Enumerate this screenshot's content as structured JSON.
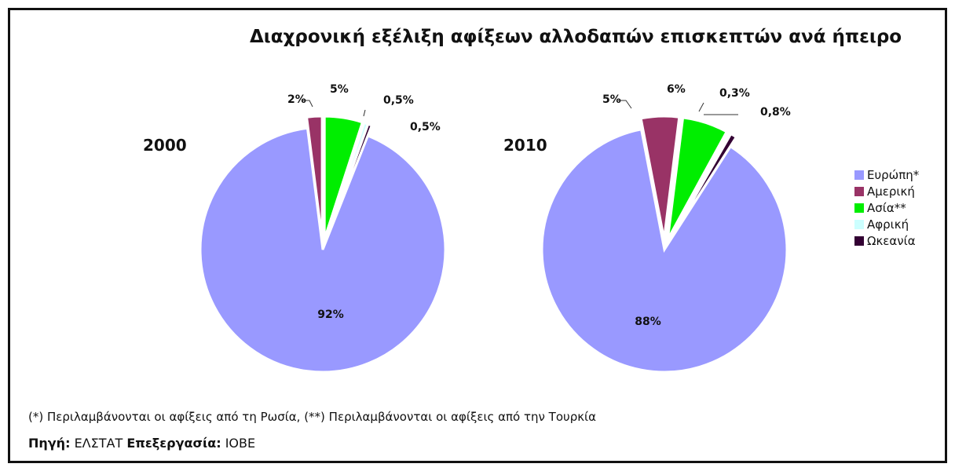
{
  "title": "Διαχρονική εξέλιξη αφίξεων αλλοδαπών επισκεπτών ανά ήπειρο",
  "footnote": "(*) Περιλαμβάνονται οι αφίξεις από τη Ρωσία, (**) Περιλαμβάνονται οι αφίξεις από την Τουρκία",
  "source": {
    "source_label": "Πηγή:",
    "source_value": "ΕΛΣΤΑΤ",
    "processing_label": "Επεξεργασία:",
    "processing_value": "ΙΟΒΕ"
  },
  "legend": [
    {
      "label": "Ευρώπη*",
      "color": "#9999ff"
    },
    {
      "label": "Αμερική",
      "color": "#993366"
    },
    {
      "label": "Ασία**",
      "color": "#00ee00"
    },
    {
      "label": "Αφρική",
      "color": "#ccffff"
    },
    {
      "label": "Ωκεανία",
      "color": "#330033"
    }
  ],
  "chart_data": [
    {
      "type": "pie",
      "title": "2000",
      "categories": [
        "Ευρώπη*",
        "Αμερική",
        "Ασία**",
        "Αφρική",
        "Ωκεανία"
      ],
      "values": [
        92,
        2,
        5,
        0.5,
        0.5
      ],
      "labels": [
        "92%",
        "2%",
        "5%",
        "0,5%",
        "0,5%"
      ],
      "colors": [
        "#9999ff",
        "#993366",
        "#00ee00",
        "#ccffff",
        "#330033"
      ]
    },
    {
      "type": "pie",
      "title": "2010",
      "categories": [
        "Ευρώπη*",
        "Αμερική",
        "Ασία**",
        "Αφρική",
        "Ωκεανία"
      ],
      "values": [
        88,
        5,
        6,
        0.3,
        0.8
      ],
      "labels": [
        "88%",
        "5%",
        "6%",
        "0,3%",
        "0,8%"
      ],
      "colors": [
        "#9999ff",
        "#993366",
        "#00ee00",
        "#ccffff",
        "#330033"
      ]
    }
  ]
}
